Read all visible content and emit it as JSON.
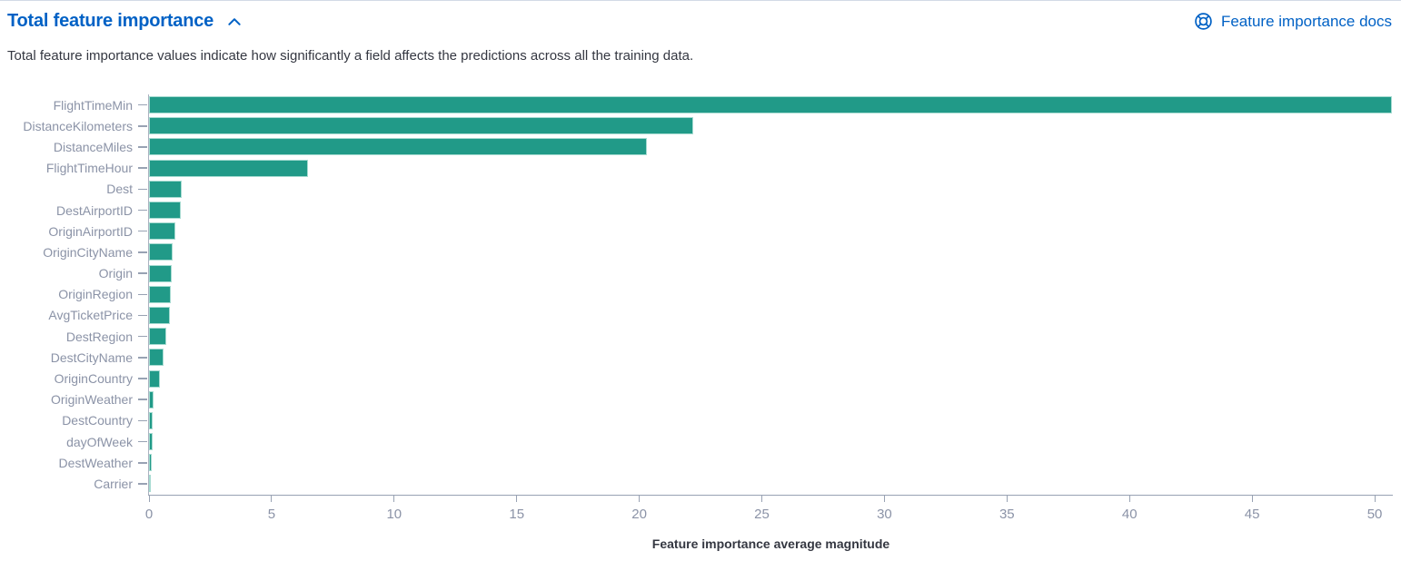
{
  "header": {
    "title": "Total feature importance",
    "docs_link_label": "Feature importance docs"
  },
  "description": "Total feature importance values indicate how significantly a field affects the predictions across all the training data.",
  "colors": {
    "link_blue": "#0061c5",
    "bar_fill": "#219a88",
    "bar_border": "#a6dbd1",
    "axis_text": "#8b93a7",
    "axis_line": "#98a2b3",
    "text_dark": "#343741"
  },
  "chart_data": {
    "type": "bar",
    "orientation": "horizontal",
    "title": "",
    "xlabel": "Feature importance average magnitude",
    "ylabel": "",
    "categories": [
      "FlightTimeMin",
      "DistanceKilometers",
      "DistanceMiles",
      "FlightTimeHour",
      "Dest",
      "DestAirportID",
      "OriginAirportID",
      "OriginCityName",
      "Origin",
      "OriginRegion",
      "AvgTicketPrice",
      "DestRegion",
      "DestCityName",
      "OriginCountry",
      "OriginWeather",
      "DestCountry",
      "dayOfWeek",
      "DestWeather",
      "Carrier"
    ],
    "values": [
      50.7,
      22.2,
      20.3,
      6.5,
      1.33,
      1.28,
      1.07,
      0.96,
      0.93,
      0.89,
      0.85,
      0.7,
      0.59,
      0.44,
      0.19,
      0.15,
      0.15,
      0.11,
      0.05
    ],
    "x_ticks": [
      0,
      5,
      10,
      15,
      20,
      25,
      30,
      35,
      40,
      45,
      50
    ],
    "xlim": [
      0,
      50.74
    ],
    "grid": false,
    "legend": false
  }
}
